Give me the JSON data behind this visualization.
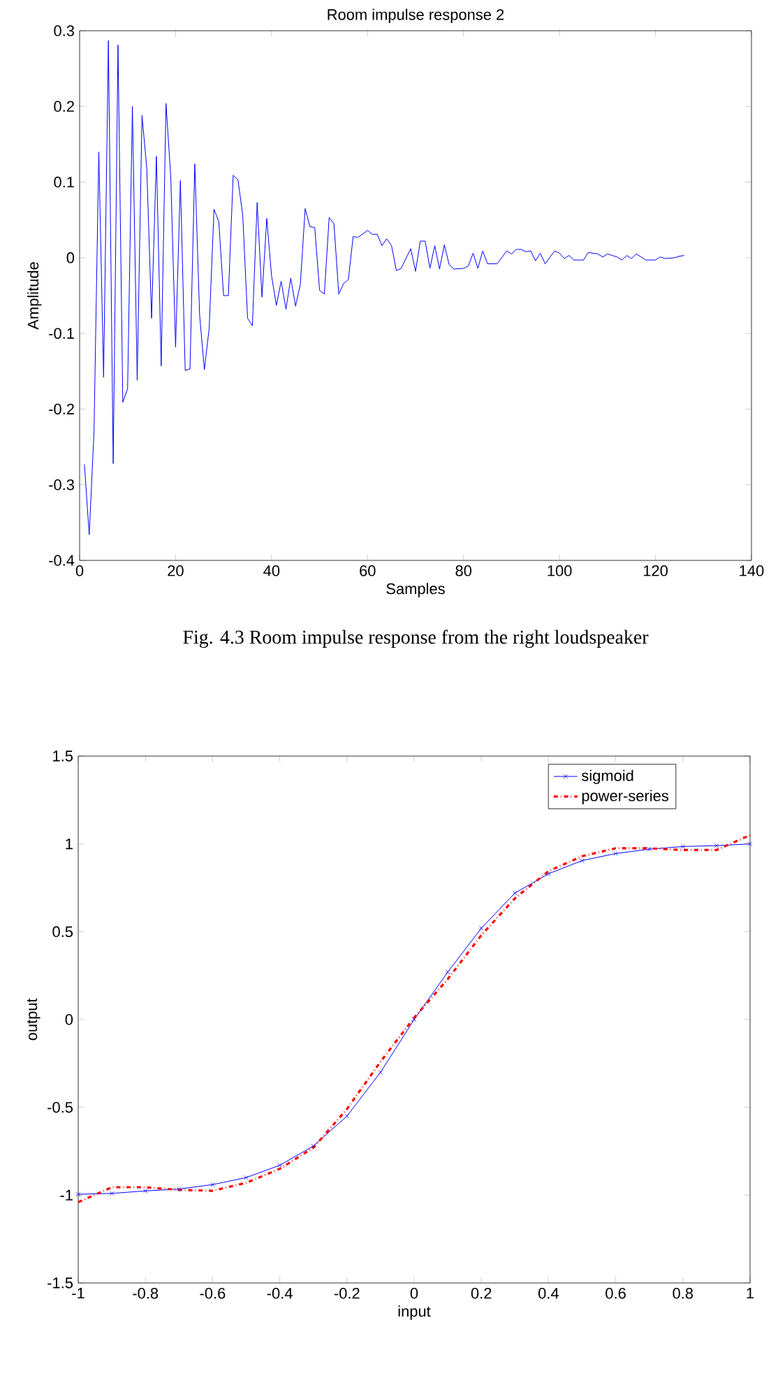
{
  "chart_data": [
    {
      "type": "line",
      "title": "Room impulse response 2",
      "xlabel": "Samples",
      "ylabel": "Amplitude",
      "annotations": [
        "Fig. 4.3 Room impulse response from the right loudspeaker"
      ],
      "xlim": [
        0,
        140
      ],
      "ylim": [
        -0.4,
        0.3
      ],
      "xticks": [
        0,
        20,
        40,
        60,
        80,
        100,
        120,
        140
      ],
      "yticks": [
        -0.4,
        -0.3,
        -0.2,
        -0.1,
        0,
        0.1,
        0.2,
        0.3
      ],
      "grid": false,
      "legend": false,
      "series": [
        {
          "color": "#0000ff",
          "x": [
            1,
            2,
            3,
            4,
            5,
            6,
            7,
            8,
            9,
            10,
            11,
            12,
            13,
            14,
            15,
            16,
            17,
            18,
            19,
            20,
            21,
            22,
            23,
            24,
            25,
            26,
            27,
            28,
            29,
            30,
            31,
            32,
            33,
            34,
            35,
            36,
            37,
            38,
            39,
            40,
            41,
            42,
            43,
            44,
            45,
            46,
            47,
            48,
            49,
            50,
            51,
            52,
            53,
            54,
            55,
            56,
            57,
            58,
            60,
            61,
            62,
            63,
            64,
            65,
            66,
            67,
            69,
            70,
            71,
            72,
            73,
            74,
            75,
            76,
            77,
            78,
            80,
            81,
            82,
            83,
            84,
            85,
            87,
            89,
            90,
            91,
            92,
            93,
            94,
            95,
            96,
            97,
            99,
            100,
            101,
            102,
            103,
            104,
            105,
            106,
            108,
            109,
            110,
            112,
            113,
            114,
            115,
            116,
            117,
            118,
            120,
            121,
            122,
            124,
            125,
            126
          ],
          "values": [
            -0.273,
            -0.366,
            -0.23,
            0.14,
            -0.158,
            0.287,
            -0.272,
            0.281,
            -0.191,
            -0.173,
            0.2,
            -0.162,
            0.188,
            0.118,
            -0.08,
            0.134,
            -0.143,
            0.204,
            0.106,
            -0.118,
            0.102,
            -0.149,
            -0.147,
            0.124,
            -0.075,
            -0.148,
            -0.093,
            0.064,
            0.048,
            -0.05,
            -0.05,
            0.109,
            0.103,
            0.056,
            -0.08,
            -0.09,
            0.073,
            -0.052,
            0.052,
            -0.024,
            -0.063,
            -0.031,
            -0.068,
            -0.027,
            -0.064,
            -0.035,
            0.065,
            0.041,
            0.04,
            -0.043,
            -0.048,
            0.053,
            0.045,
            -0.048,
            -0.034,
            -0.029,
            0.028,
            0.027,
            0.036,
            0.031,
            0.031,
            0.016,
            0.025,
            0.016,
            -0.017,
            -0.014,
            0.012,
            -0.018,
            0.022,
            0.022,
            -0.014,
            0.016,
            -0.015,
            0.017,
            -0.009,
            -0.015,
            -0.014,
            -0.011,
            0.006,
            -0.014,
            0.009,
            -0.008,
            -0.008,
            0.009,
            0.005,
            0.011,
            0.011,
            0.008,
            0.009,
            -0.004,
            0.006,
            -0.008,
            0.009,
            0.006,
            -0.001,
            0.003,
            -0.003,
            -0.003,
            -0.003,
            0.007,
            0.005,
            0.001,
            0.005,
            0.001,
            -0.003,
            0.003,
            -0.001,
            0.005,
            0.001,
            -0.003,
            -0.003,
            0.001,
            -0.001,
            0,
            0.002,
            0.003
          ]
        }
      ]
    },
    {
      "type": "line",
      "xlabel": "input",
      "ylabel": "output",
      "xlim": [
        -1,
        1
      ],
      "ylim": [
        -1.5,
        1.5
      ],
      "xticks": [
        -1,
        -0.8,
        -0.6,
        -0.4,
        -0.2,
        0,
        0.2,
        0.4,
        0.6,
        0.8,
        1
      ],
      "yticks": [
        -1.5,
        -1,
        -0.5,
        0,
        0.5,
        1,
        1.5
      ],
      "grid": false,
      "legend": "top right",
      "x": [
        -1,
        -0.9,
        -0.8,
        -0.7,
        -0.6,
        -0.5,
        -0.4,
        -0.3,
        -0.2,
        -0.1,
        0,
        0.1,
        0.2,
        0.3,
        0.4,
        0.5,
        0.6,
        0.7,
        0.8,
        0.9,
        1
      ],
      "series": [
        {
          "name": "sigmoid",
          "color": "#0000ff",
          "marker": "cross",
          "line_style": "solid",
          "values": [
            -0.995,
            -0.99,
            -0.976,
            -0.965,
            -0.94,
            -0.9,
            -0.83,
            -0.72,
            -0.55,
            -0.3,
            0,
            0.27,
            0.52,
            0.72,
            0.83,
            0.905,
            0.945,
            0.97,
            0.985,
            0.99,
            1.0
          ]
        },
        {
          "name": "power-series",
          "color": "#ff0000",
          "marker": "none",
          "line_style": "dashdot",
          "values": [
            -1.04,
            -0.955,
            -0.955,
            -0.97,
            -0.975,
            -0.93,
            -0.85,
            -0.73,
            -0.51,
            -0.24,
            0.01,
            0.23,
            0.48,
            0.69,
            0.845,
            0.93,
            0.975,
            0.975,
            0.965,
            0.965,
            1.05
          ]
        }
      ]
    }
  ]
}
